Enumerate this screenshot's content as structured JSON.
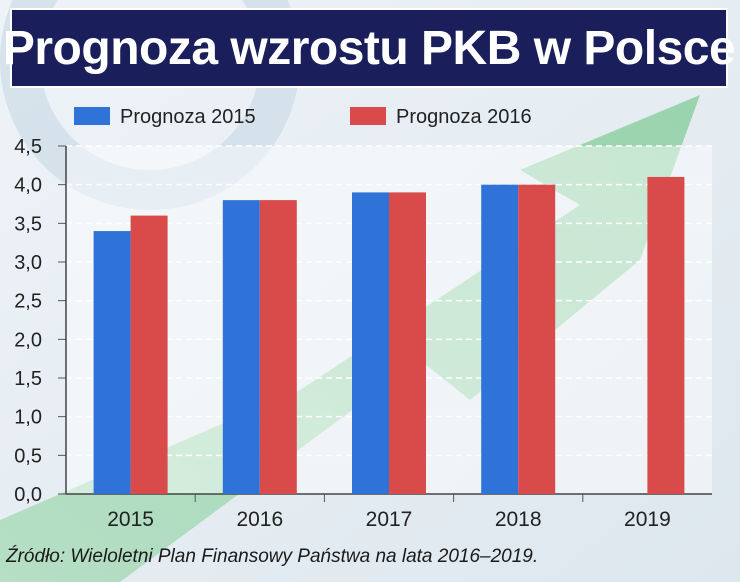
{
  "title": "Prognoza wzrostu PKB w Polsce",
  "source": "Źródło: Wieloletni Plan Finansowy Państwa na lata 2016–2019.",
  "chart_data": {
    "type": "bar",
    "title": "Prognoza wzrostu PKB w Polsce",
    "xlabel": "",
    "ylabel": "",
    "categories": [
      "2015",
      "2016",
      "2017",
      "2018",
      "2019"
    ],
    "series": [
      {
        "name": "Prognoza 2015",
        "color": "#2f73d8",
        "values": [
          3.4,
          3.8,
          3.9,
          4.0,
          null
        ]
      },
      {
        "name": "Prognoza 2016",
        "color": "#d94a4a",
        "values": [
          3.6,
          3.8,
          3.9,
          4.0,
          4.1
        ]
      }
    ],
    "ylim": [
      0,
      4.5
    ],
    "yticks": [
      "0,0",
      "0,5",
      "1,0",
      "1,5",
      "2,0",
      "2,5",
      "3,0",
      "3,5",
      "4,0",
      "4,5"
    ],
    "ytick_values": [
      0,
      0.5,
      1.0,
      1.5,
      2.0,
      2.5,
      3.0,
      3.5,
      4.0,
      4.5
    ],
    "grid": true,
    "legend_position": "top-left"
  }
}
